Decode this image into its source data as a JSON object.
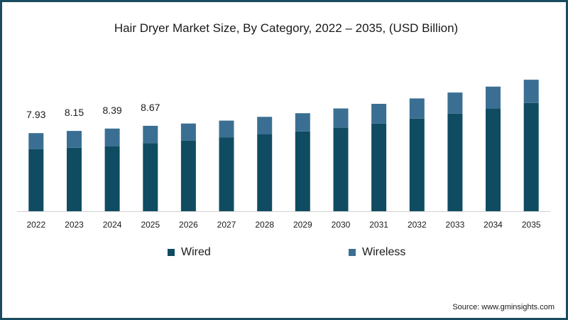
{
  "chart_data": {
    "type": "bar",
    "stacked": true,
    "title": "Hair Dryer Market Size, By Category, 2022 – 2035, (USD Billion)",
    "xlabel": "",
    "ylabel": "",
    "ylim": [
      0,
      20
    ],
    "categories": [
      "2022",
      "2023",
      "2024",
      "2025",
      "2026",
      "2027",
      "2028",
      "2029",
      "2030",
      "2031",
      "2032",
      "2033",
      "2034",
      "2035"
    ],
    "series": [
      {
        "name": "Wired",
        "color": "#0f4c62",
        "values": [
          6.3,
          6.45,
          6.6,
          6.9,
          7.2,
          7.5,
          7.8,
          8.1,
          8.5,
          8.9,
          9.4,
          9.9,
          10.4,
          11.0
        ]
      },
      {
        "name": "Wireless",
        "color": "#3a6f93",
        "values": [
          1.63,
          1.7,
          1.79,
          1.77,
          1.7,
          1.7,
          1.78,
          1.85,
          1.93,
          2.0,
          2.05,
          2.15,
          2.25,
          2.35
        ]
      }
    ],
    "data_labels": [
      "7.93",
      "8.15",
      "8.39",
      "8.67"
    ],
    "legend": [
      "Wired",
      "Wireless"
    ],
    "legend_position": "bottom",
    "grid": false
  },
  "source_text": "Source: www.gminsights.com"
}
